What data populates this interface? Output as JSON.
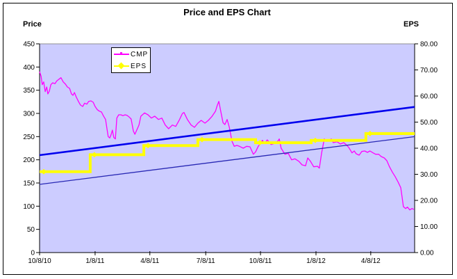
{
  "title": "Price and EPS Chart",
  "left_axis_title": "Price",
  "right_axis_title": "EPS",
  "legend": {
    "entries": [
      {
        "label": "CMP"
      },
      {
        "label": "EPS"
      }
    ]
  },
  "colors": {
    "plot_background": "#CCCCFF",
    "cmp_line": "#FF00FF",
    "eps_line": "#FFFF00",
    "upper_trend": "#0000EE",
    "lower_trend": "#2828B4",
    "axis": "#000000",
    "plot_top_border": "#909090"
  },
  "chart_data": {
    "type": "line",
    "title": "Price and EPS Chart",
    "legend_position": "top-inside-left",
    "grid": false,
    "y_left": {
      "title": "Price",
      "min": 0,
      "max": 450,
      "tick_labels": [
        "0",
        "50",
        "100",
        "150",
        "200",
        "250",
        "300",
        "350",
        "400",
        "450"
      ]
    },
    "y_right": {
      "title": "EPS",
      "min": 0,
      "max": 80,
      "tick_labels": [
        "0.00",
        "10.00",
        "20.00",
        "30.00",
        "40.00",
        "50.00",
        "60.00",
        "70.00",
        "80.00"
      ]
    },
    "x_axis": {
      "ticks": [
        {
          "label": "10/8/10",
          "pos": 0.0
        },
        {
          "label": "1/8/11",
          "pos": 0.148
        },
        {
          "label": "4/8/11",
          "pos": 0.294
        },
        {
          "label": "7/8/11",
          "pos": 0.443
        },
        {
          "label": "10/8/11",
          "pos": 0.589
        },
        {
          "label": "1/8/12",
          "pos": 0.737
        },
        {
          "label": "4/8/12",
          "pos": 0.883
        }
      ]
    },
    "series": [
      {
        "name": "CMP",
        "axis": "left",
        "kind": "polyline",
        "color": "#FF00FF",
        "points": [
          [
            0.0,
            390
          ],
          [
            0.004,
            380
          ],
          [
            0.007,
            362
          ],
          [
            0.011,
            368
          ],
          [
            0.015,
            347
          ],
          [
            0.019,
            357
          ],
          [
            0.022,
            342
          ],
          [
            0.026,
            348
          ],
          [
            0.03,
            362
          ],
          [
            0.035,
            366
          ],
          [
            0.041,
            364
          ],
          [
            0.046,
            370
          ],
          [
            0.052,
            374
          ],
          [
            0.057,
            377
          ],
          [
            0.063,
            368
          ],
          [
            0.069,
            363
          ],
          [
            0.074,
            357
          ],
          [
            0.08,
            354
          ],
          [
            0.085,
            342
          ],
          [
            0.089,
            339
          ],
          [
            0.093,
            345
          ],
          [
            0.098,
            335
          ],
          [
            0.104,
            325
          ],
          [
            0.109,
            318
          ],
          [
            0.115,
            315
          ],
          [
            0.12,
            322
          ],
          [
            0.126,
            320
          ],
          [
            0.131,
            326
          ],
          [
            0.137,
            327
          ],
          [
            0.143,
            324
          ],
          [
            0.148,
            315
          ],
          [
            0.154,
            308
          ],
          [
            0.159,
            305
          ],
          [
            0.165,
            303
          ],
          [
            0.17,
            295
          ],
          [
            0.176,
            287
          ],
          [
            0.18,
            265
          ],
          [
            0.183,
            250
          ],
          [
            0.187,
            247
          ],
          [
            0.191,
            255
          ],
          [
            0.194,
            264
          ],
          [
            0.198,
            248
          ],
          [
            0.202,
            245
          ],
          [
            0.206,
            290
          ],
          [
            0.211,
            297
          ],
          [
            0.217,
            297
          ],
          [
            0.222,
            295
          ],
          [
            0.228,
            297
          ],
          [
            0.233,
            296
          ],
          [
            0.239,
            292
          ],
          [
            0.244,
            288
          ],
          [
            0.25,
            262
          ],
          [
            0.254,
            255
          ],
          [
            0.259,
            264
          ],
          [
            0.265,
            275
          ],
          [
            0.27,
            294
          ],
          [
            0.28,
            301
          ],
          [
            0.289,
            297
          ],
          [
            0.298,
            290
          ],
          [
            0.307,
            294
          ],
          [
            0.317,
            287
          ],
          [
            0.326,
            290
          ],
          [
            0.335,
            275
          ],
          [
            0.344,
            267
          ],
          [
            0.354,
            275
          ],
          [
            0.363,
            272
          ],
          [
            0.372,
            285
          ],
          [
            0.381,
            300
          ],
          [
            0.385,
            302
          ],
          [
            0.394,
            287
          ],
          [
            0.404,
            275
          ],
          [
            0.413,
            270
          ],
          [
            0.422,
            279
          ],
          [
            0.431,
            285
          ],
          [
            0.441,
            279
          ],
          [
            0.45,
            285
          ],
          [
            0.459,
            293
          ],
          [
            0.469,
            305
          ],
          [
            0.474,
            318
          ],
          [
            0.478,
            326
          ],
          [
            0.483,
            305
          ],
          [
            0.489,
            280
          ],
          [
            0.494,
            276
          ],
          [
            0.5,
            287
          ],
          [
            0.506,
            270
          ],
          [
            0.513,
            240
          ],
          [
            0.519,
            229
          ],
          [
            0.526,
            231
          ],
          [
            0.533,
            229
          ],
          [
            0.543,
            225
          ],
          [
            0.552,
            229
          ],
          [
            0.561,
            228
          ],
          [
            0.57,
            212
          ],
          [
            0.576,
            217
          ],
          [
            0.583,
            229
          ],
          [
            0.589,
            235
          ],
          [
            0.594,
            242
          ],
          [
            0.6,
            235
          ],
          [
            0.607,
            243
          ],
          [
            0.617,
            233
          ],
          [
            0.626,
            235
          ],
          [
            0.635,
            240
          ],
          [
            0.639,
            245
          ],
          [
            0.644,
            225
          ],
          [
            0.654,
            212
          ],
          [
            0.663,
            214
          ],
          [
            0.672,
            200
          ],
          [
            0.681,
            202
          ],
          [
            0.691,
            197
          ],
          [
            0.7,
            189
          ],
          [
            0.709,
            187
          ],
          [
            0.715,
            204
          ],
          [
            0.722,
            197
          ],
          [
            0.731,
            185
          ],
          [
            0.741,
            186
          ],
          [
            0.746,
            182
          ],
          [
            0.752,
            215
          ],
          [
            0.759,
            245
          ],
          [
            0.765,
            240
          ],
          [
            0.77,
            242
          ],
          [
            0.778,
            245
          ],
          [
            0.783,
            237
          ],
          [
            0.793,
            239
          ],
          [
            0.802,
            234
          ],
          [
            0.811,
            237
          ],
          [
            0.817,
            233
          ],
          [
            0.824,
            227
          ],
          [
            0.833,
            215
          ],
          [
            0.839,
            219
          ],
          [
            0.844,
            213
          ],
          [
            0.852,
            210
          ],
          [
            0.859,
            218
          ],
          [
            0.867,
            219
          ],
          [
            0.874,
            216
          ],
          [
            0.881,
            219
          ],
          [
            0.889,
            215
          ],
          [
            0.896,
            212
          ],
          [
            0.904,
            212
          ],
          [
            0.911,
            207
          ],
          [
            0.919,
            204
          ],
          [
            0.926,
            198
          ],
          [
            0.933,
            185
          ],
          [
            0.941,
            173
          ],
          [
            0.948,
            164
          ],
          [
            0.956,
            152
          ],
          [
            0.963,
            140
          ],
          [
            0.967,
            117
          ],
          [
            0.97,
            99
          ],
          [
            0.976,
            95
          ],
          [
            0.981,
            98
          ],
          [
            0.987,
            92
          ],
          [
            0.993,
            95
          ],
          [
            0.998,
            93
          ]
        ]
      },
      {
        "name": "EPS",
        "axis": "right",
        "kind": "step",
        "color": "#FFFF00",
        "marker": "diamond",
        "segments": [
          {
            "from": 0.0,
            "to": 0.135,
            "value": 31.0
          },
          {
            "from": 0.135,
            "to": 0.278,
            "value": 37.5
          },
          {
            "from": 0.278,
            "to": 0.422,
            "value": 41.0
          },
          {
            "from": 0.422,
            "to": 0.576,
            "value": 43.3
          },
          {
            "from": 0.576,
            "to": 0.724,
            "value": 42.1
          },
          {
            "from": 0.724,
            "to": 0.87,
            "value": 43.0
          },
          {
            "from": 0.87,
            "to": 1.0,
            "value": 45.6
          }
        ]
      },
      {
        "name": "upper-trend",
        "axis": "left",
        "kind": "straight",
        "color": "#0000EE",
        "width": 2.6,
        "from": [
          0.0,
          210
        ],
        "to": [
          1.0,
          314
        ]
      },
      {
        "name": "lower-trend",
        "axis": "left",
        "kind": "straight",
        "color": "#2828B4",
        "width": 1.3,
        "from": [
          0.0,
          147
        ],
        "to": [
          1.0,
          250
        ]
      }
    ]
  }
}
